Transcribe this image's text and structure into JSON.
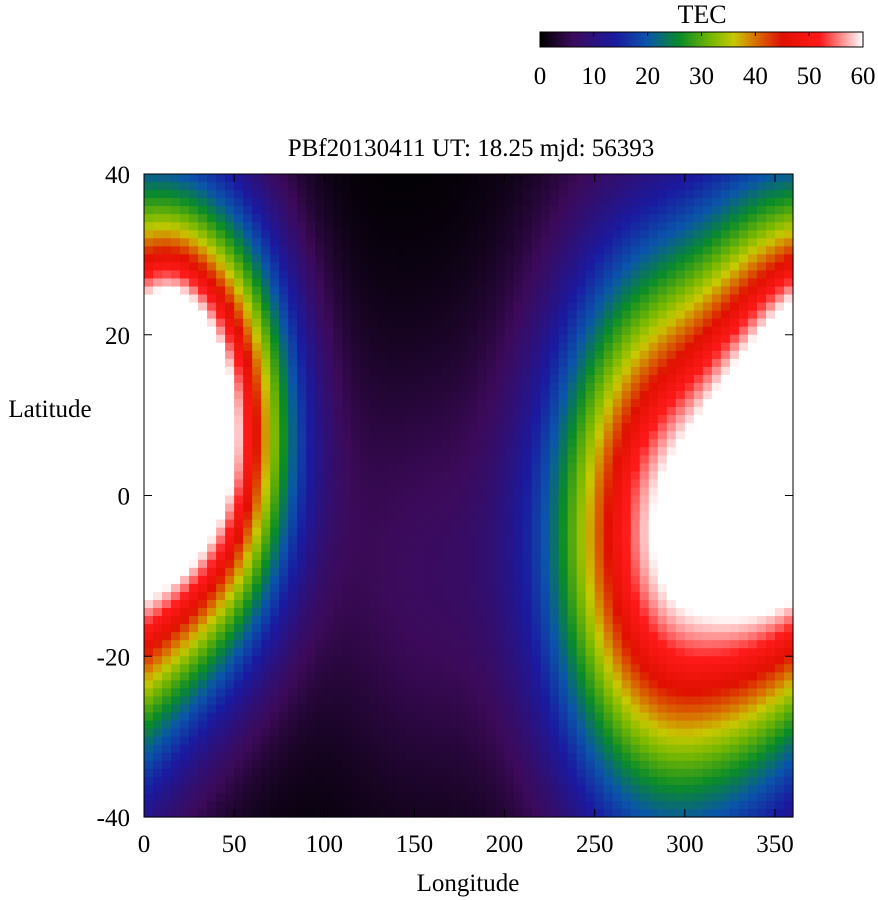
{
  "chart_data": {
    "type": "heatmap",
    "title": "PBf20130411  UT: 18.25  mjd: 56393",
    "xlabel": "Longitude",
    "ylabel": "Latitude",
    "xlim": [
      0,
      360
    ],
    "ylim": [
      -40,
      40
    ],
    "xticks": [
      0,
      50,
      100,
      150,
      200,
      250,
      300,
      350
    ],
    "yticks": [
      40,
      20,
      0,
      -20,
      -40
    ],
    "colorbar": {
      "label": "TEC",
      "range": [
        0,
        60
      ],
      "ticks": [
        0,
        10,
        20,
        30,
        40,
        50,
        60
      ],
      "stops": [
        {
          "v": 0,
          "color": "#000000"
        },
        {
          "v": 6,
          "color": "#3c0a5a"
        },
        {
          "v": 14,
          "color": "#1a1aa0"
        },
        {
          "v": 20,
          "color": "#0a55aa"
        },
        {
          "v": 26,
          "color": "#0a8c28"
        },
        {
          "v": 32,
          "color": "#7ab800"
        },
        {
          "v": 36,
          "color": "#c8c800"
        },
        {
          "v": 40,
          "color": "#d87000"
        },
        {
          "v": 45,
          "color": "#e01000"
        },
        {
          "v": 52,
          "color": "#ff1a1a"
        },
        {
          "v": 60,
          "color": "#ffffff"
        }
      ]
    },
    "grid": false,
    "features": [
      {
        "lon": 35,
        "lat": 8,
        "peak": 60,
        "sigma_lon": 32,
        "sigma_lat": 18
      },
      {
        "lon": 15,
        "lat": 15,
        "peak": 12,
        "sigma_lon": 15,
        "sigma_lat": 10
      },
      {
        "lon": 290,
        "lat": -5,
        "peak": 58,
        "sigma_lon": 45,
        "sigma_lat": 24
      },
      {
        "lon": 350,
        "lat": 5,
        "peak": 40,
        "sigma_lon": 30,
        "sigma_lat": 22
      },
      {
        "lon": 150,
        "lat": -10,
        "peak": 6,
        "sigma_lon": 40,
        "sigma_lat": 20
      }
    ]
  }
}
